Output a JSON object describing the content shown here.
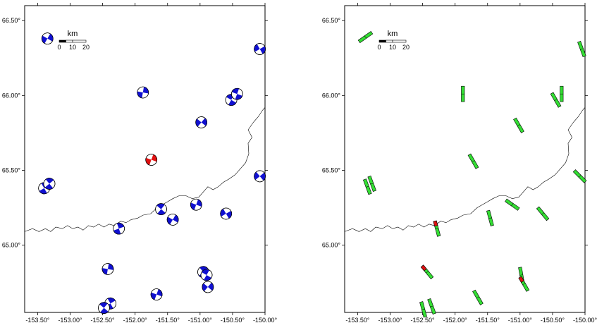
{
  "map_common": {
    "x_tick_labels": [
      "-153.50°",
      "-153.00°",
      "-152.50°",
      "-152.00°",
      "-151.50°",
      "-151.00°",
      "-150.50°",
      "-150.00°"
    ],
    "y_tick_labels": [
      "66.50°",
      "66.00°",
      "65.50°",
      "65.00°"
    ],
    "x_ticks_lon": [
      -153.5,
      -153.0,
      -152.5,
      -152.0,
      -151.5,
      -151.0,
      -150.5,
      -150.0
    ],
    "y_ticks_lat": [
      66.5,
      66.0,
      65.5,
      65.0
    ],
    "lon_range": [
      -153.7,
      -150.0
    ],
    "lat_range": [
      64.55,
      66.6
    ],
    "scale_bar": {
      "unit": "km",
      "labels": [
        "0",
        "10",
        "20"
      ]
    },
    "coastline": [
      [
        -153.7,
        65.09
      ],
      [
        -153.58,
        65.11
      ],
      [
        -153.48,
        65.09
      ],
      [
        -153.38,
        65.11
      ],
      [
        -153.3,
        65.09
      ],
      [
        -153.22,
        65.12
      ],
      [
        -153.12,
        65.11
      ],
      [
        -153.04,
        65.13
      ],
      [
        -152.96,
        65.11
      ],
      [
        -152.88,
        65.12
      ],
      [
        -152.8,
        65.1
      ],
      [
        -152.72,
        65.13
      ],
      [
        -152.64,
        65.12
      ],
      [
        -152.56,
        65.14
      ],
      [
        -152.48,
        65.12
      ],
      [
        -152.4,
        65.14
      ],
      [
        -152.32,
        65.13
      ],
      [
        -152.22,
        65.16
      ],
      [
        -152.14,
        65.15
      ],
      [
        -152.06,
        65.17
      ],
      [
        -151.96,
        65.18
      ],
      [
        -151.88,
        65.2
      ],
      [
        -151.76,
        65.21
      ],
      [
        -151.66,
        65.25
      ],
      [
        -151.58,
        65.27
      ],
      [
        -151.5,
        65.29
      ],
      [
        -151.42,
        65.31
      ],
      [
        -151.32,
        65.33
      ],
      [
        -151.22,
        65.33
      ],
      [
        -151.12,
        65.31
      ],
      [
        -151.02,
        65.32
      ],
      [
        -150.94,
        65.36
      ],
      [
        -150.88,
        65.39
      ],
      [
        -150.8,
        65.37
      ],
      [
        -150.72,
        65.39
      ],
      [
        -150.64,
        65.42
      ],
      [
        -150.56,
        65.44
      ],
      [
        -150.46,
        65.47
      ],
      [
        -150.38,
        65.51
      ],
      [
        -150.3,
        65.55
      ],
      [
        -150.25,
        65.61
      ],
      [
        -150.26,
        65.68
      ],
      [
        -150.2,
        65.72
      ],
      [
        -150.26,
        65.77
      ],
      [
        -150.18,
        65.82
      ],
      [
        -150.1,
        65.86
      ],
      [
        -150.04,
        65.9
      ],
      [
        -150.0,
        65.92
      ]
    ]
  },
  "panels": [
    {
      "id": "focal-mechanisms",
      "events": [
        {
          "lon": -153.35,
          "lat": 66.38,
          "color": "#1010d0",
          "strike": 30
        },
        {
          "lon": -150.08,
          "lat": 66.31,
          "color": "#1010d0",
          "strike": 60
        },
        {
          "lon": -151.88,
          "lat": 66.02,
          "color": "#1010d0",
          "strike": 10
        },
        {
          "lon": -150.52,
          "lat": 65.97,
          "color": "#1010d0",
          "strike": 120
        },
        {
          "lon": -150.43,
          "lat": 66.01,
          "color": "#1010d0",
          "strike": 110
        },
        {
          "lon": -150.98,
          "lat": 65.82,
          "color": "#1010d0",
          "strike": 40
        },
        {
          "lon": -151.75,
          "lat": 65.57,
          "color": "#e01010",
          "strike": 20
        },
        {
          "lon": -153.4,
          "lat": 65.38,
          "color": "#1010d0",
          "strike": 150
        },
        {
          "lon": -153.32,
          "lat": 65.41,
          "color": "#1010d0",
          "strike": 140
        },
        {
          "lon": -150.08,
          "lat": 65.46,
          "color": "#1010d0",
          "strike": 50
        },
        {
          "lon": -151.6,
          "lat": 65.24,
          "color": "#1010d0",
          "strike": 130
        },
        {
          "lon": -151.06,
          "lat": 65.27,
          "color": "#1010d0",
          "strike": 20
        },
        {
          "lon": -150.6,
          "lat": 65.21,
          "color": "#1010d0",
          "strike": 60
        },
        {
          "lon": -151.42,
          "lat": 65.17,
          "color": "#1010d0",
          "strike": 30
        },
        {
          "lon": -152.25,
          "lat": 65.11,
          "color": "#1010d0",
          "strike": 160
        },
        {
          "lon": -152.42,
          "lat": 64.84,
          "color": "#1010d0",
          "strike": 10
        },
        {
          "lon": -150.95,
          "lat": 64.82,
          "color": "#1010d0",
          "strike": 140
        },
        {
          "lon": -150.9,
          "lat": 64.8,
          "color": "#1010d0",
          "strike": 120
        },
        {
          "lon": -150.88,
          "lat": 64.72,
          "color": "#1010d0",
          "strike": 40
        },
        {
          "lon": -151.67,
          "lat": 64.67,
          "color": "#1010d0",
          "strike": 20
        },
        {
          "lon": -152.38,
          "lat": 64.61,
          "color": "#1010d0",
          "strike": 150
        },
        {
          "lon": -152.48,
          "lat": 64.58,
          "color": "#1010d0",
          "strike": 130
        }
      ]
    },
    {
      "id": "p-axis-directions",
      "segments": [
        {
          "lon": -153.38,
          "lat": 66.39,
          "azimuth": 55,
          "color": "#33dd33",
          "red_tip": false
        },
        {
          "lon": -150.05,
          "lat": 66.31,
          "azimuth": 160,
          "color": "#33dd33",
          "red_tip": false
        },
        {
          "lon": -151.88,
          "lat": 66.01,
          "azimuth": 0,
          "color": "#33dd33",
          "red_tip": false
        },
        {
          "lon": -150.45,
          "lat": 65.97,
          "azimuth": 150,
          "color": "#33dd33",
          "red_tip": false
        },
        {
          "lon": -150.36,
          "lat": 66.01,
          "azimuth": 0,
          "color": "#33dd33",
          "red_tip": false
        },
        {
          "lon": -151.02,
          "lat": 65.8,
          "azimuth": 150,
          "color": "#33dd33",
          "red_tip": false
        },
        {
          "lon": -151.72,
          "lat": 65.56,
          "azimuth": 150,
          "color": "#33dd33",
          "red_tip": false
        },
        {
          "lon": -153.35,
          "lat": 65.39,
          "azimuth": 160,
          "color": "#33dd33",
          "red_tip": false
        },
        {
          "lon": -153.28,
          "lat": 65.41,
          "azimuth": 160,
          "color": "#33dd33",
          "red_tip": false
        },
        {
          "lon": -150.08,
          "lat": 65.46,
          "azimuth": 135,
          "color": "#33dd33",
          "red_tip": false
        },
        {
          "lon": -151.46,
          "lat": 65.18,
          "azimuth": 165,
          "color": "#33dd33",
          "red_tip": false
        },
        {
          "lon": -151.12,
          "lat": 65.27,
          "azimuth": 125,
          "color": "#33dd33",
          "red_tip": false
        },
        {
          "lon": -150.65,
          "lat": 65.21,
          "azimuth": 140,
          "color": "#33dd33",
          "red_tip": false
        },
        {
          "lon": -152.28,
          "lat": 65.11,
          "azimuth": 165,
          "color": "#33dd33",
          "red_tip": true
        },
        {
          "lon": -152.43,
          "lat": 64.82,
          "azimuth": 140,
          "color": "#33dd33",
          "red_tip": true
        },
        {
          "lon": -150.98,
          "lat": 64.8,
          "azimuth": 170,
          "color": "#33dd33",
          "red_tip": false
        },
        {
          "lon": -150.94,
          "lat": 64.74,
          "azimuth": 150,
          "color": "#33dd33",
          "red_tip": true
        },
        {
          "lon": -151.65,
          "lat": 64.65,
          "azimuth": 150,
          "color": "#33dd33",
          "red_tip": false
        },
        {
          "lon": -152.36,
          "lat": 64.59,
          "azimuth": 160,
          "color": "#33dd33",
          "red_tip": false
        },
        {
          "lon": -152.49,
          "lat": 64.57,
          "azimuth": 165,
          "color": "#33dd33",
          "red_tip": false
        }
      ]
    }
  ]
}
